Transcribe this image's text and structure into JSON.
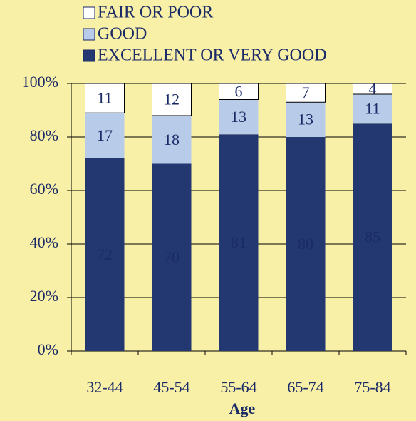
{
  "chart_data": {
    "type": "stacked_bar",
    "x_label": "Age",
    "categories": [
      "32-44",
      "45-54",
      "55-64",
      "65-74",
      "75-84"
    ],
    "series": [
      {
        "name": "EXCELLENT OR VERY GOOD",
        "color": "#233871",
        "values": [
          72,
          70,
          81,
          80,
          85
        ]
      },
      {
        "name": "GOOD",
        "color": "#b8cbe9",
        "values": [
          17,
          18,
          13,
          13,
          11
        ]
      },
      {
        "name": "FAIR OR POOR",
        "color": "#ffffff",
        "values": [
          11,
          12,
          6,
          7,
          4
        ]
      }
    ],
    "ylim": [
      0,
      100
    ],
    "yticks": [
      {
        "value": 0,
        "label": "0%"
      },
      {
        "value": 20,
        "label": "20%"
      },
      {
        "value": 40,
        "label": "40%"
      },
      {
        "value": 60,
        "label": "60%"
      },
      {
        "value": 80,
        "label": "80%"
      },
      {
        "value": 100,
        "label": "100%"
      }
    ],
    "grid": true
  }
}
